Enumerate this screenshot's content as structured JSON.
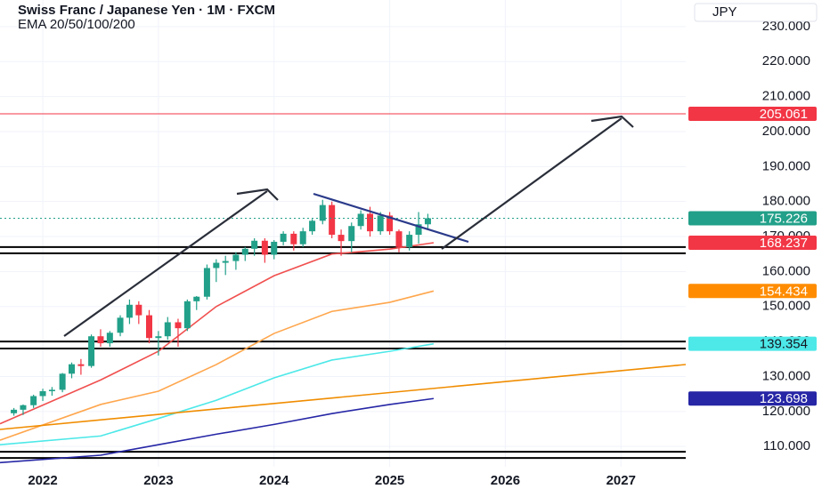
{
  "chart_data": {
    "type": "candlestick",
    "title": "Swiss Franc / Japanese Yen · 1M · FXCM",
    "subtitle": "EMA 20/50/100/200",
    "currency": "JPY",
    "xlim": [
      2021.63,
      2027.56
    ],
    "ylim": [
      104.2,
      237.6
    ],
    "xticks": [
      2022,
      2023,
      2024,
      2025,
      2026,
      2027
    ],
    "yticks": [
      {
        "value": 110,
        "label": "110.000"
      },
      {
        "value": 120,
        "label": "120.000"
      },
      {
        "value": 130,
        "label": "130.000"
      },
      {
        "value": 140,
        "label": "140.000"
      },
      {
        "value": 150,
        "label": "150.000"
      },
      {
        "value": 160,
        "label": "160.000"
      },
      {
        "value": 170,
        "label": "170.000"
      },
      {
        "value": 180,
        "label": "180.000"
      },
      {
        "value": 190,
        "label": "190.000"
      },
      {
        "value": 200,
        "label": "200.000"
      },
      {
        "value": 210,
        "label": "210.000"
      },
      {
        "value": 220,
        "label": "220.000"
      },
      {
        "value": 230,
        "label": "230.000"
      }
    ],
    "grid": true,
    "up_color": "#22a089",
    "down_color": "#f23645",
    "candles": {
      "x": [
        2021.75,
        2021.83,
        2021.92,
        2022,
        2022.08,
        2022.17,
        2022.25,
        2022.33,
        2022.42,
        2022.5,
        2022.58,
        2022.67,
        2022.75,
        2022.83,
        2022.92,
        2023,
        2023.08,
        2023.17,
        2023.25,
        2023.33,
        2023.42,
        2023.5,
        2023.58,
        2023.67,
        2023.75,
        2023.83,
        2023.92,
        2024,
        2024.08,
        2024.17,
        2024.25,
        2024.33,
        2024.42,
        2024.5,
        2024.58,
        2024.67,
        2024.75,
        2024.83,
        2024.92,
        2025,
        2025.08,
        2025.17,
        2025.25,
        2025.33
      ],
      "open": [
        119.5,
        120.5,
        121.8,
        124.4,
        125.8,
        126.2,
        130.8,
        133.5,
        133,
        141.5,
        139.5,
        142.5,
        146.8,
        150.5,
        147.5,
        141,
        141.5,
        145.5,
        143.8,
        151.5,
        152.8,
        161,
        162.5,
        163,
        164.8,
        166.5,
        168.8,
        164.8,
        168.5,
        170.8,
        167.8,
        171.5,
        174.5,
        179,
        170.5,
        168.7,
        173,
        176.5,
        171.5,
        176,
        171.5,
        167,
        170.5,
        173.5
      ],
      "high": [
        121,
        122,
        124.8,
        126.5,
        127,
        131,
        134,
        135,
        142,
        143.5,
        143,
        147.5,
        152,
        151.5,
        149,
        143,
        147,
        146.5,
        152,
        153,
        162,
        163.5,
        164.5,
        165.5,
        167,
        169.5,
        169.5,
        169,
        171.5,
        171.5,
        172.5,
        175,
        180.5,
        180,
        172,
        174,
        177.5,
        178.5,
        177,
        177,
        172,
        171.5,
        177,
        176.5
      ],
      "low": [
        118.8,
        119,
        121,
        123,
        124.5,
        125.5,
        129.5,
        130.5,
        132.5,
        138.5,
        138.5,
        141.5,
        145,
        145,
        139.5,
        136,
        140.5,
        138.5,
        143,
        149,
        152,
        157,
        159,
        160.5,
        163,
        164.5,
        162.5,
        163.5,
        167.5,
        166,
        167,
        170.5,
        173.5,
        169.5,
        164.5,
        165.5,
        172,
        170,
        170.5,
        170.5,
        165.5,
        166,
        168,
        172
      ],
      "close": [
        120.5,
        121.8,
        124.4,
        125.8,
        126.2,
        130.8,
        133.5,
        133,
        141.5,
        139.5,
        142.5,
        146.8,
        150.5,
        147.5,
        141,
        141.5,
        145.5,
        143.8,
        151.5,
        152.8,
        161,
        162.5,
        163,
        164.8,
        166.5,
        168.8,
        164.8,
        168.5,
        170.8,
        167.8,
        171.5,
        174.5,
        179,
        170.5,
        168.7,
        173,
        176.5,
        171.5,
        176,
        171.5,
        167,
        170.5,
        173.5,
        175.226
      ]
    },
    "series": [
      {
        "name": "EMA 20",
        "color": "#f0504f",
        "x": [
          2021.63,
          2022.5,
          2023,
          2023.5,
          2024,
          2024.5,
          2025,
          2025.38
        ],
        "values": [
          116.5,
          129,
          137.2,
          150,
          158.8,
          165,
          166.4,
          168.237
        ]
      },
      {
        "name": "EMA 50",
        "color": "#ffa64d",
        "x": [
          2021.63,
          2022.5,
          2023,
          2023.5,
          2024,
          2024.5,
          2025,
          2025.38
        ],
        "values": [
          111.8,
          122,
          125.8,
          133.4,
          142.3,
          148.6,
          151.2,
          154.434
        ]
      },
      {
        "name": "EMA 100",
        "color": "#4de8e8",
        "x": [
          2021.63,
          2022.5,
          2023,
          2023.5,
          2024,
          2024.5,
          2025,
          2025.38
        ],
        "values": [
          110.5,
          113,
          118,
          123.2,
          129.6,
          134.7,
          137.2,
          139.354
        ]
      },
      {
        "name": "EMA 200",
        "color": "#2626a6",
        "x": [
          2021.63,
          2022.5,
          2023,
          2023.5,
          2024,
          2024.5,
          2025,
          2025.38
        ],
        "values": [
          105.4,
          107.5,
          110.5,
          113.5,
          116.3,
          119.4,
          122,
          123.698
        ]
      }
    ],
    "levels": [
      167.0,
      165.2,
      140.0,
      138.0,
      108.5,
      106.7
    ],
    "price_labels": [
      {
        "value": 205.061,
        "color": "#f23645",
        "line": "solid"
      },
      {
        "value": 175.226,
        "color": "#22a089",
        "line": "dotted"
      },
      {
        "value": 168.237,
        "color": "#f23645"
      },
      {
        "value": 154.434,
        "color": "#ff8c00"
      },
      {
        "value": 139.354,
        "color": "#4de8e8"
      },
      {
        "value": 123.698,
        "color": "#2626a6"
      }
    ]
  }
}
